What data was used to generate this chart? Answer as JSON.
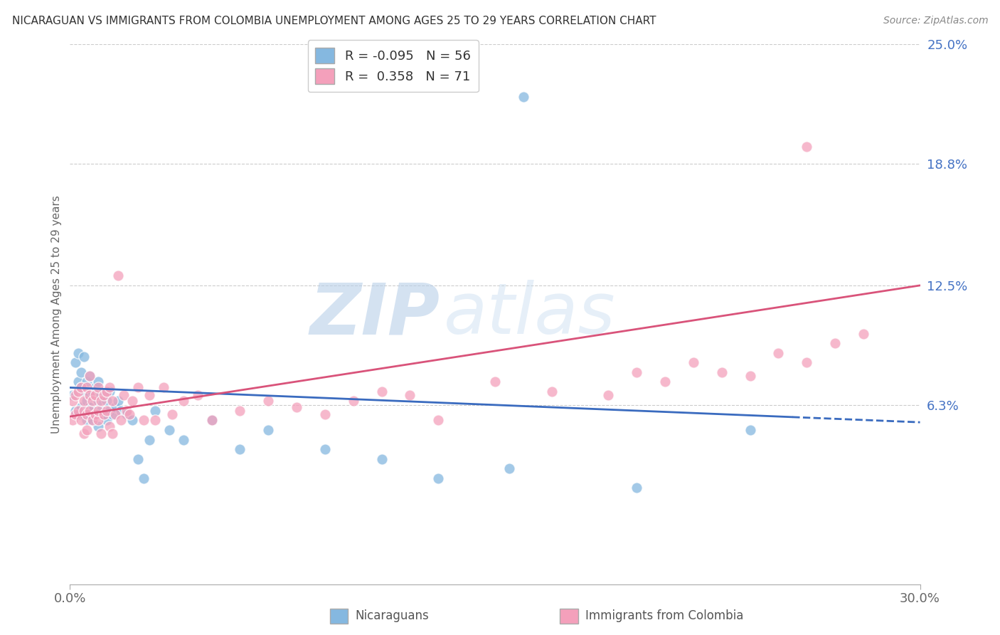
{
  "title": "NICARAGUAN VS IMMIGRANTS FROM COLOMBIA UNEMPLOYMENT AMONG AGES 25 TO 29 YEARS CORRELATION CHART",
  "source": "Source: ZipAtlas.com",
  "ylabel": "Unemployment Among Ages 25 to 29 years",
  "legend_blue_label": "Nicaraguans",
  "legend_pink_label": "Immigrants from Colombia",
  "R_blue": -0.095,
  "N_blue": 56,
  "R_pink": 0.358,
  "N_pink": 71,
  "blue_color": "#85b8e0",
  "pink_color": "#f4a0bb",
  "blue_line_color": "#3a6bbf",
  "pink_line_color": "#d9537a",
  "watermark_zip": "ZIP",
  "watermark_atlas": "atlas",
  "xlim": [
    0.0,
    0.3
  ],
  "ylim": [
    -0.03,
    0.25
  ],
  "ytick_vals": [
    0.0,
    0.063,
    0.125,
    0.188,
    0.25
  ],
  "ytick_labels": [
    "",
    "6.3%",
    "12.5%",
    "18.8%",
    "25.0%"
  ],
  "xtick_vals": [
    0.0,
    0.3
  ],
  "xtick_labels": [
    "0.0%",
    "30.0%"
  ],
  "blue_trend_x": [
    0.0,
    0.3
  ],
  "blue_trend_y": [
    0.072,
    0.054
  ],
  "pink_trend_x": [
    0.0,
    0.3
  ],
  "pink_trend_y": [
    0.057,
    0.125
  ],
  "blue_scatter_x": [
    0.001,
    0.002,
    0.002,
    0.003,
    0.003,
    0.003,
    0.004,
    0.004,
    0.004,
    0.005,
    0.005,
    0.005,
    0.006,
    0.006,
    0.006,
    0.007,
    0.007,
    0.007,
    0.008,
    0.008,
    0.008,
    0.009,
    0.009,
    0.01,
    0.01,
    0.01,
    0.011,
    0.011,
    0.012,
    0.012,
    0.013,
    0.013,
    0.014,
    0.014,
    0.015,
    0.016,
    0.017,
    0.018,
    0.02,
    0.022,
    0.024,
    0.026,
    0.028,
    0.03,
    0.035,
    0.04,
    0.05,
    0.06,
    0.07,
    0.09,
    0.11,
    0.13,
    0.155,
    0.2,
    0.16,
    0.24
  ],
  "blue_scatter_y": [
    0.068,
    0.085,
    0.06,
    0.075,
    0.058,
    0.09,
    0.072,
    0.062,
    0.08,
    0.07,
    0.058,
    0.088,
    0.065,
    0.075,
    0.055,
    0.068,
    0.062,
    0.078,
    0.055,
    0.07,
    0.06,
    0.072,
    0.058,
    0.065,
    0.075,
    0.052,
    0.068,
    0.06,
    0.07,
    0.058,
    0.065,
    0.055,
    0.06,
    0.07,
    0.058,
    0.062,
    0.065,
    0.06,
    0.058,
    0.055,
    0.035,
    0.025,
    0.045,
    0.06,
    0.05,
    0.045,
    0.055,
    0.04,
    0.05,
    0.04,
    0.035,
    0.025,
    0.03,
    0.02,
    0.223,
    0.05
  ],
  "pink_scatter_x": [
    0.001,
    0.001,
    0.002,
    0.002,
    0.003,
    0.003,
    0.004,
    0.004,
    0.005,
    0.005,
    0.005,
    0.006,
    0.006,
    0.006,
    0.007,
    0.007,
    0.007,
    0.008,
    0.008,
    0.009,
    0.009,
    0.01,
    0.01,
    0.01,
    0.011,
    0.011,
    0.012,
    0.012,
    0.013,
    0.013,
    0.014,
    0.014,
    0.015,
    0.015,
    0.016,
    0.017,
    0.018,
    0.019,
    0.02,
    0.021,
    0.022,
    0.024,
    0.026,
    0.028,
    0.03,
    0.033,
    0.036,
    0.04,
    0.045,
    0.05,
    0.06,
    0.07,
    0.08,
    0.09,
    0.1,
    0.11,
    0.12,
    0.13,
    0.15,
    0.17,
    0.19,
    0.2,
    0.21,
    0.22,
    0.23,
    0.24,
    0.25,
    0.26,
    0.27,
    0.28,
    0.26
  ],
  "pink_scatter_y": [
    0.055,
    0.065,
    0.068,
    0.058,
    0.06,
    0.07,
    0.055,
    0.072,
    0.06,
    0.048,
    0.065,
    0.058,
    0.072,
    0.05,
    0.068,
    0.06,
    0.078,
    0.055,
    0.065,
    0.058,
    0.068,
    0.055,
    0.06,
    0.072,
    0.048,
    0.065,
    0.058,
    0.068,
    0.06,
    0.07,
    0.052,
    0.072,
    0.048,
    0.065,
    0.058,
    0.13,
    0.055,
    0.068,
    0.06,
    0.058,
    0.065,
    0.072,
    0.055,
    0.068,
    0.055,
    0.072,
    0.058,
    0.065,
    0.068,
    0.055,
    0.06,
    0.065,
    0.062,
    0.058,
    0.065,
    0.07,
    0.068,
    0.055,
    0.075,
    0.07,
    0.068,
    0.08,
    0.075,
    0.085,
    0.08,
    0.078,
    0.09,
    0.085,
    0.095,
    0.1,
    0.197
  ]
}
